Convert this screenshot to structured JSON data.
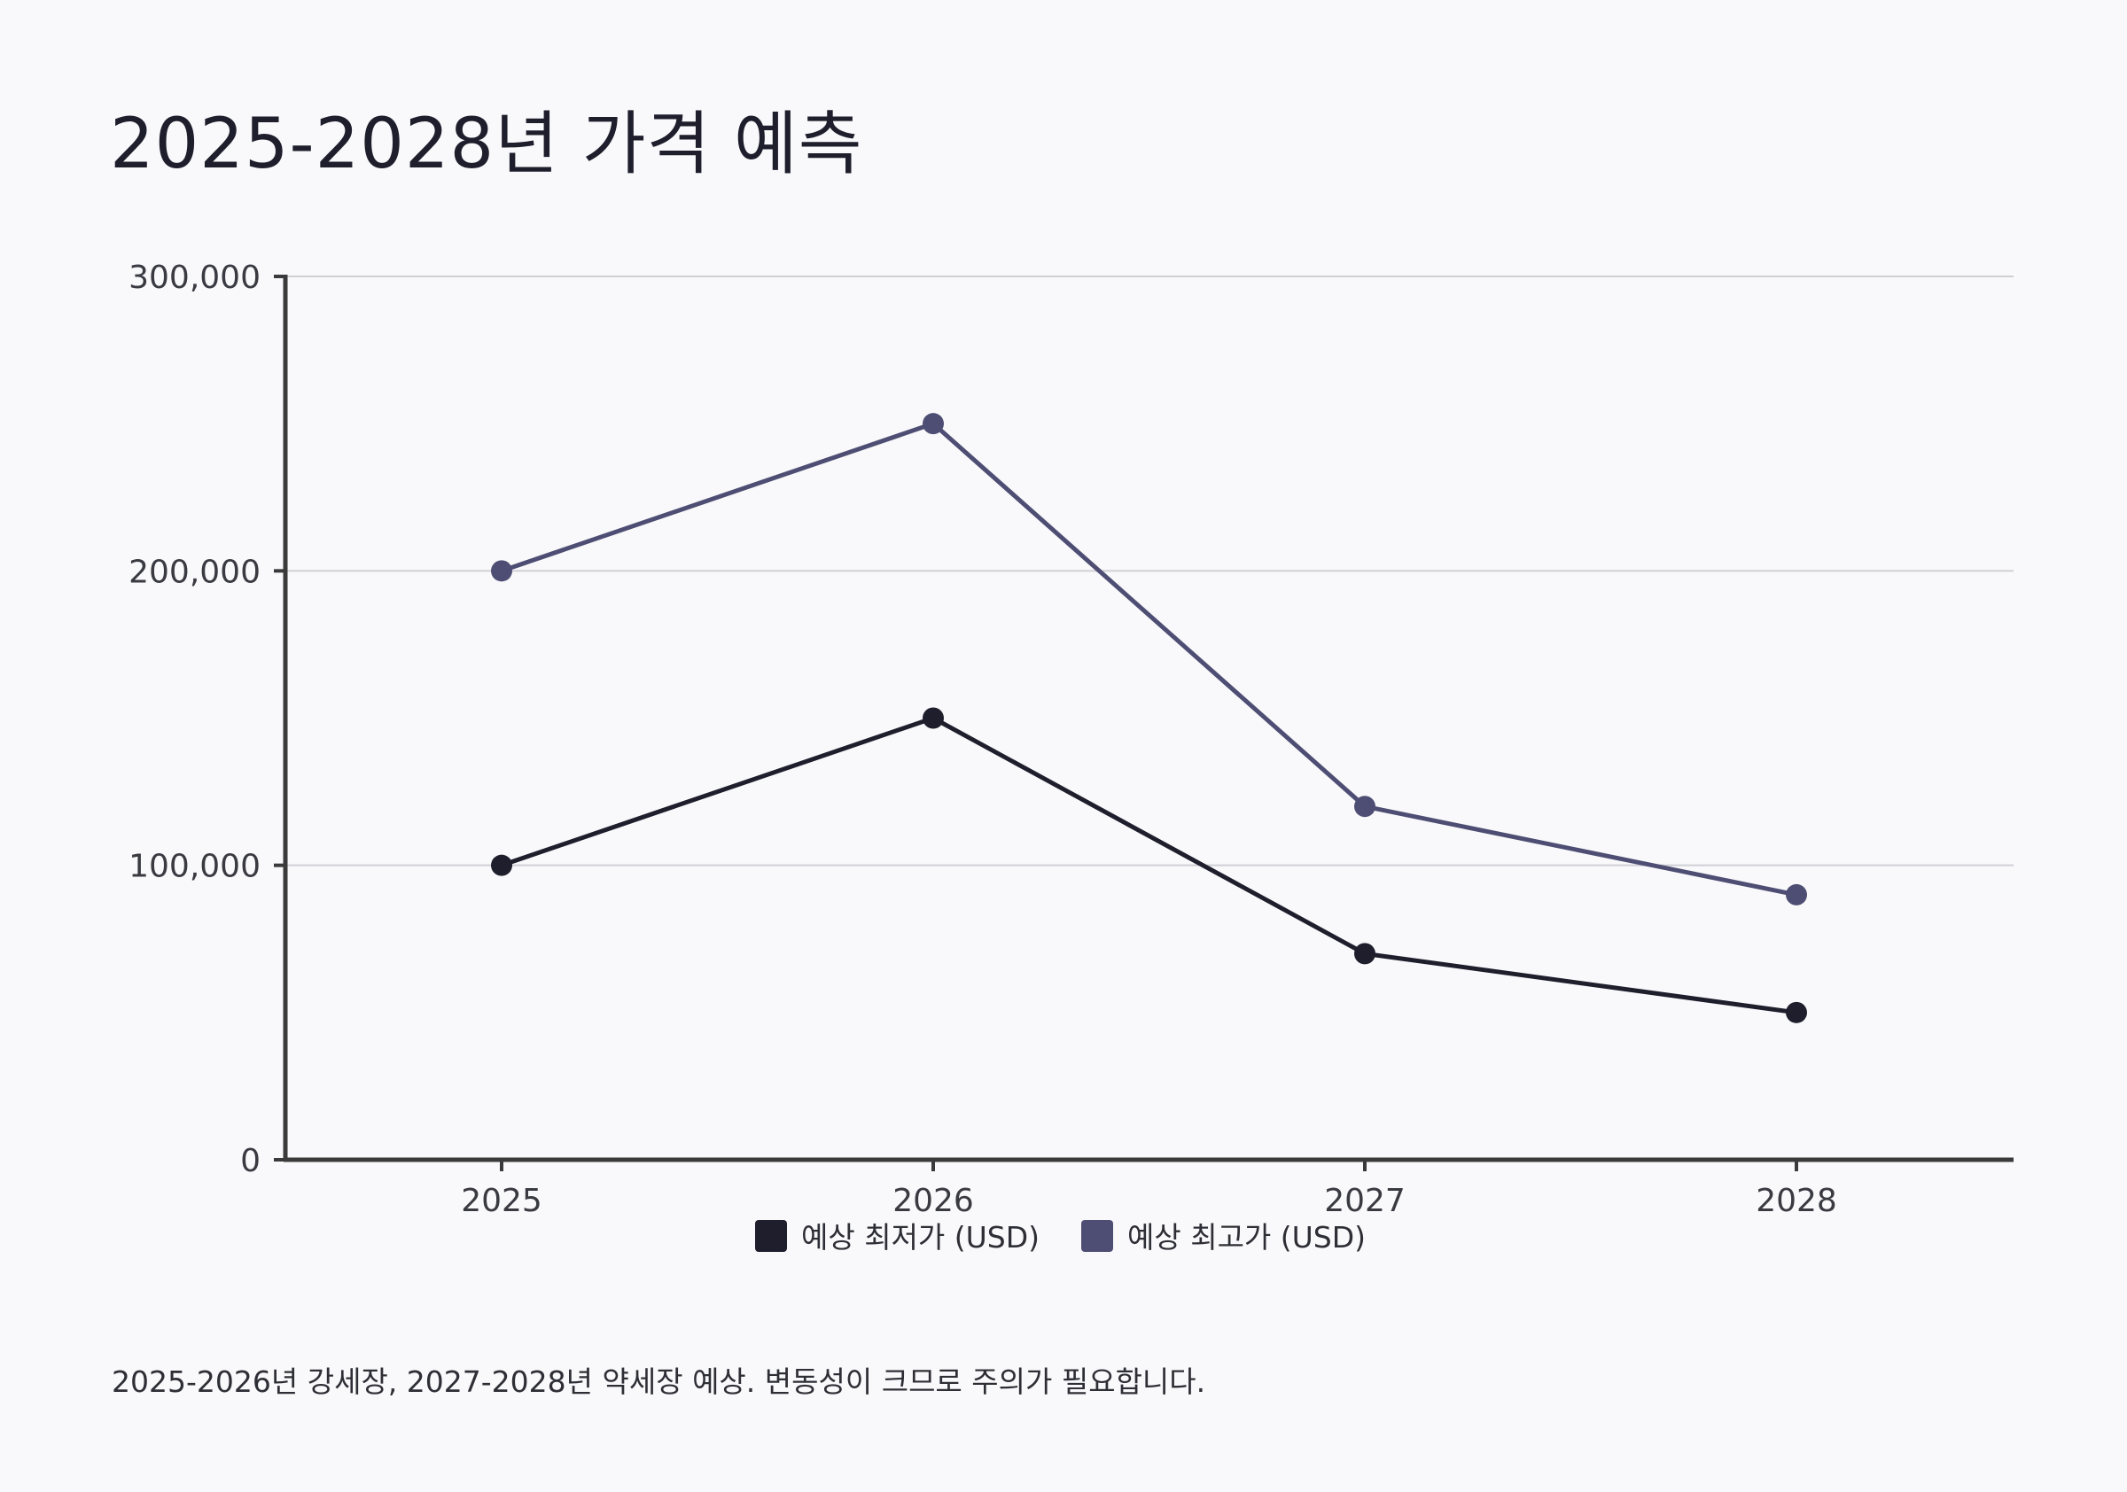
{
  "title": "2025-2028년 가격 예측",
  "footnote": "2025-2026년 강세장, 2027-2028년 약세장 예상. 변동성이 크므로 주의가 필요합니다.",
  "chart_data": {
    "type": "line",
    "categories": [
      "2025",
      "2026",
      "2027",
      "2028"
    ],
    "series": [
      {
        "name": "예상 최저가 (USD)",
        "values": [
          100000,
          150000,
          70000,
          50000
        ],
        "color": "#1e1e2d"
      },
      {
        "name": "예상 최고가 (USD)",
        "values": [
          200000,
          250000,
          120000,
          90000
        ],
        "color": "#4e4e74"
      }
    ],
    "ylim": [
      0,
      300000
    ],
    "yticks": [
      0,
      100000,
      200000,
      300000
    ],
    "ytick_labels": [
      "0",
      "100,000",
      "200,000",
      "300,000"
    ],
    "xlabel": "",
    "ylabel": "",
    "grid": "horizontal",
    "legend": "bottom-center"
  }
}
